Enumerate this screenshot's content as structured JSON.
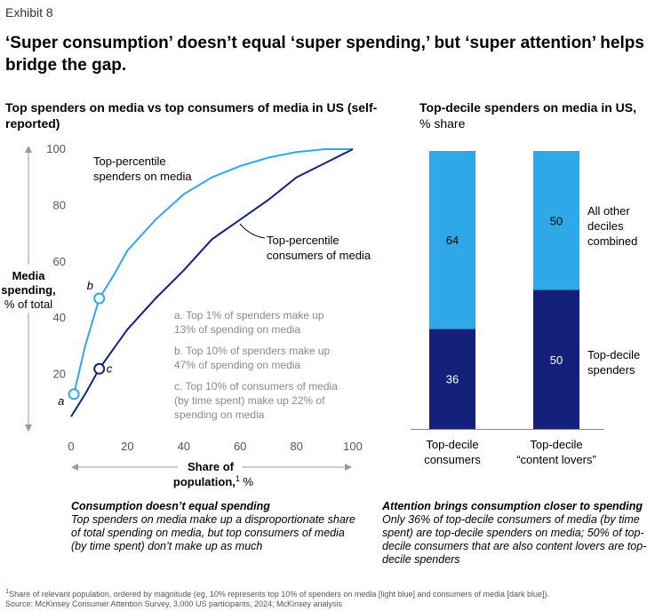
{
  "exhibit_label": "Exhibit 8",
  "headline": "‘Super consumption’ doesn’t equal ‘super spending,’ but ‘super attention’ helps bridge the gap.",
  "colors": {
    "light_blue": "#2fa8e8",
    "dark_blue": "#13217a",
    "annotation_gray": "#8a8a8a",
    "axis_gray": "#999999"
  },
  "chart_data": [
    {
      "type": "line",
      "title": "Top spenders on media vs top consumers of media in US (self-reported)",
      "xlabel_main": "Share of",
      "xlabel_line2": "population,",
      "xlabel_sup": "1",
      "xlabel_unit": "%",
      "ylabel_main": "Media",
      "ylabel_line2": "spending,",
      "ylabel_unit": "% of total",
      "xlim": [
        0,
        100
      ],
      "ylim": [
        0,
        100
      ],
      "xticks": [
        0,
        20,
        40,
        60,
        80,
        100
      ],
      "yticks": [
        20,
        40,
        60,
        80,
        100
      ],
      "series": [
        {
          "name": "Top-percentile spenders on media",
          "label_line1": "Top-percentile",
          "label_line2": "spenders on media",
          "color": "#2fa8e8",
          "x": [
            1,
            5,
            10,
            15,
            20,
            30,
            40,
            50,
            60,
            70,
            80,
            90,
            100
          ],
          "y": [
            13,
            30,
            47,
            55,
            64,
            75,
            84,
            90,
            94,
            97,
            99,
            100,
            100
          ]
        },
        {
          "name": "Top-percentile consumers of media",
          "label_line1": "Top-percentile",
          "label_line2": "consumers of media",
          "color": "#13217a",
          "x": [
            0,
            5,
            10,
            15,
            20,
            30,
            40,
            50,
            60,
            70,
            80,
            90,
            100
          ],
          "y": [
            5,
            13,
            22,
            29,
            36,
            47,
            57,
            68,
            75,
            82,
            90,
            95,
            100
          ]
        }
      ],
      "markers": [
        {
          "label": "a",
          "series": 0,
          "x": 1,
          "y": 13
        },
        {
          "label": "b",
          "series": 0,
          "x": 10,
          "y": 47
        },
        {
          "label": "c",
          "series": 1,
          "x": 10,
          "y": 22
        }
      ],
      "notes": [
        [
          "a. Top 1% of spenders make up",
          "13% of spending on media"
        ],
        [
          "b. Top 10% of spenders make up",
          "47% of spending on media"
        ],
        [
          "c. Top 10% of consumers of media",
          "(by time spent) make up 22% of",
          "spending on media"
        ]
      ]
    },
    {
      "type": "bar",
      "stacked": true,
      "title": "Top-decile spenders on media in US,",
      "subtitle": "% share",
      "categories": [
        [
          "Top-decile",
          "consumers"
        ],
        [
          "Top-decile",
          "“content lovers”"
        ]
      ],
      "series": [
        {
          "name": "Top-decile spenders",
          "label_line1": "Top-decile",
          "label_line2": "spenders",
          "color": "#13217a",
          "values": [
            36,
            50
          ]
        },
        {
          "name": "All other deciles combined",
          "label_line1": "All other",
          "label_line2": "deciles",
          "label_line3": "combined",
          "color": "#2fa8e8",
          "values": [
            64,
            50
          ]
        }
      ]
    }
  ],
  "captions": {
    "left_head": "Consumption doesn’t equal spending",
    "left_body": "Top spenders on media make up a disproportionate share of total spending on media, but top consumers of media (by time spent) don’t make up as much",
    "right_head": "Attention brings consumption closer to spending",
    "right_body": "Only 36% of top-decile consumers of media (by time spent) are top-decile spenders on media; 50% of top-decile consumers that are also content lovers are top-decile spenders"
  },
  "footnote_sup": "1",
  "footnote_line1": "Share of relevant population, ordered by magnitude (eg, 10% represents top 10% of spenders on media [light blue] and consumers of media [dark blue]).",
  "footnote_line2": "Source: McKinsey Consumer Attention Survey, 3,000 US participants, 2024; McKinsey analysis"
}
